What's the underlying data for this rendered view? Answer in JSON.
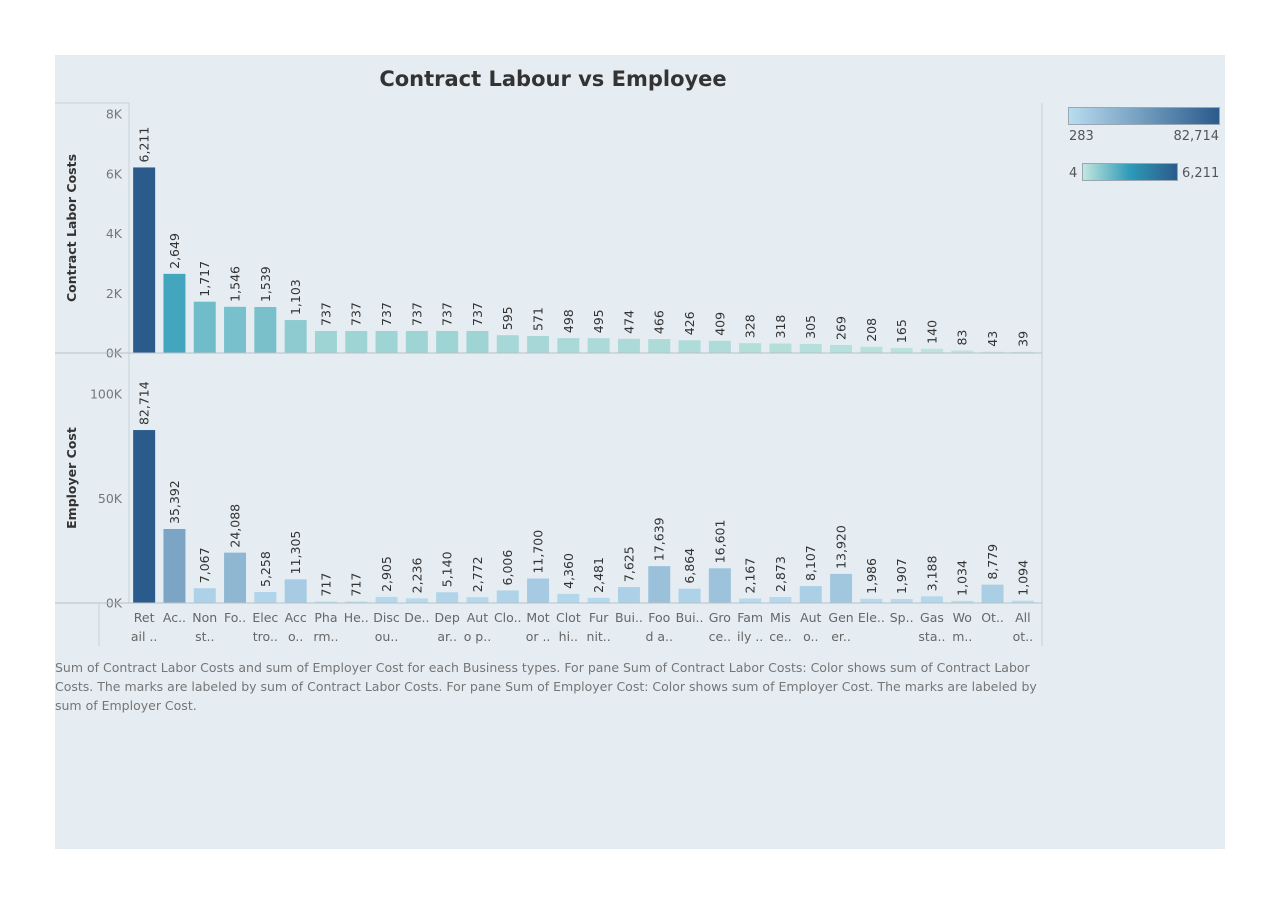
{
  "title": "Contract Labour vs Employee",
  "caption": "Sum of Contract Labor Costs and sum of Employer Cost for each Business types.  For pane Sum of Contract Labor Costs:  Color shows sum of Contract Labor Costs.  The marks are labeled by sum of Contract Labor Costs.  For pane Sum of Employer Cost:  Color shows sum of Employer Cost.  The marks are labeled by sum of Employer Cost.",
  "legends": [
    {
      "min_label": "283",
      "max_label": "82,714",
      "colors": [
        "#b9dcef",
        "#2a5b8c"
      ]
    },
    {
      "min_label": "4",
      "max_label": "6,211",
      "colors": [
        "#c2e6de",
        "#2e9ab8",
        "#2a5b8c"
      ]
    }
  ],
  "chart_data": {
    "type": "bar",
    "title": "Contract Labour vs Employee",
    "categories": [
      [
        "Ret",
        "ail .."
      ],
      [
        "Ac..",
        ""
      ],
      [
        "Non",
        "st.."
      ],
      [
        "Fo..",
        ""
      ],
      [
        "Elec",
        "tro.."
      ],
      [
        "Acc",
        "o.."
      ],
      [
        "Pha",
        "rm.."
      ],
      [
        "He..",
        ""
      ],
      [
        "Disc",
        "ou.."
      ],
      [
        "De..",
        ""
      ],
      [
        "Dep",
        "ar.."
      ],
      [
        "Aut",
        "o p.."
      ],
      [
        "Clo..",
        ""
      ],
      [
        "Mot",
        "or .."
      ],
      [
        "Clot",
        "hi.."
      ],
      [
        "Fur",
        "nit.."
      ],
      [
        "Bui..",
        ""
      ],
      [
        "Foo",
        "d a.."
      ],
      [
        "Bui..",
        ""
      ],
      [
        "Gro",
        "ce.."
      ],
      [
        "Fam",
        "ily .."
      ],
      [
        "Mis",
        "ce.."
      ],
      [
        "Aut",
        "o.."
      ],
      [
        "Gen",
        "er.."
      ],
      [
        "Ele..",
        ""
      ],
      [
        "Sp..",
        ""
      ],
      [
        "Gas",
        "sta.."
      ],
      [
        "Wo",
        "m.."
      ],
      [
        "Ot..",
        ""
      ],
      [
        "All",
        "ot.."
      ]
    ],
    "series": [
      {
        "name": "Contract Labor Costs",
        "ylabel": "Contract Labor Costs",
        "ylim": [
          0,
          8000
        ],
        "ticks": [
          {
            "v": 0,
            "label": "0K"
          },
          {
            "v": 2000,
            "label": "2K"
          },
          {
            "v": 4000,
            "label": "4K"
          },
          {
            "v": 6000,
            "label": "6K"
          },
          {
            "v": 8000,
            "label": "8K"
          }
        ],
        "values": [
          6211,
          2649,
          1717,
          1546,
          1539,
          1103,
          737,
          737,
          737,
          737,
          737,
          737,
          595,
          571,
          498,
          495,
          474,
          466,
          426,
          409,
          328,
          318,
          305,
          269,
          208,
          165,
          140,
          83,
          43,
          39
        ],
        "labels": [
          "6,211",
          "2,649",
          "1,717",
          "1,546",
          "1,539",
          "1,103",
          "737",
          "737",
          "737",
          "737",
          "737",
          "737",
          "595",
          "571",
          "498",
          "495",
          "474",
          "466",
          "426",
          "409",
          "328",
          "318",
          "305",
          "269",
          "208",
          "165",
          "140",
          "83",
          "43",
          "39"
        ],
        "color_range": [
          4,
          6211
        ]
      },
      {
        "name": "Employer Cost",
        "ylabel": "Employer Cost",
        "ylim": [
          0,
          110000
        ],
        "ticks": [
          {
            "v": 0,
            "label": "0K"
          },
          {
            "v": 50000,
            "label": "50K"
          },
          {
            "v": 100000,
            "label": "100K"
          }
        ],
        "values": [
          82714,
          35392,
          7067,
          24088,
          5258,
          11305,
          717,
          717,
          2905,
          2236,
          5140,
          2772,
          6006,
          11700,
          4360,
          2481,
          7625,
          17639,
          6864,
          16601,
          2167,
          2873,
          8107,
          13920,
          1986,
          1907,
          3188,
          1034,
          8779,
          1094
        ],
        "labels": [
          "82,714",
          "35,392",
          "7,067",
          "24,088",
          "5,258",
          "11,305",
          "717",
          "717",
          "2,905",
          "2,236",
          "5,140",
          "2,772",
          "6,006",
          "11,700",
          "4,360",
          "2,481",
          "7,625",
          "17,639",
          "6,864",
          "16,601",
          "2,167",
          "2,873",
          "8,107",
          "13,920",
          "1,986",
          "1,907",
          "3,188",
          "1,034",
          "8,779",
          "1,094"
        ],
        "color_range": [
          283,
          82714
        ]
      }
    ]
  }
}
